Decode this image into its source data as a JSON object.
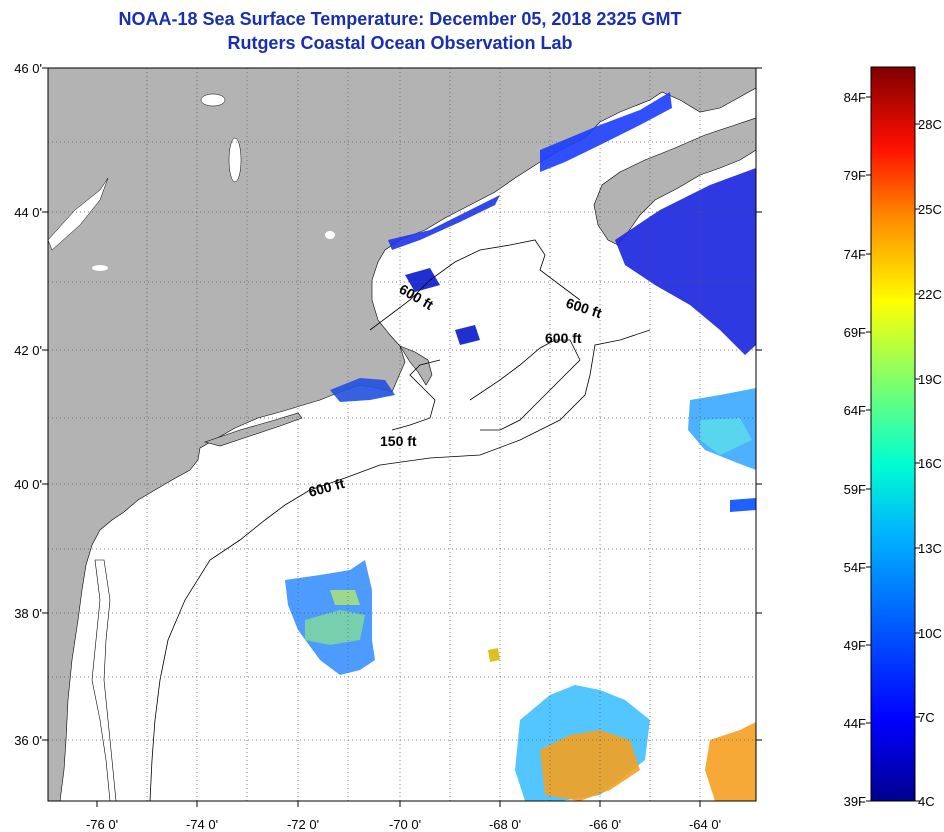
{
  "title": {
    "line1": "NOAA-18 Sea Surface Temperature:  December 05, 2018 2325 GMT",
    "line2": "Rutgers Coastal Ocean Observation Lab"
  },
  "map": {
    "lat_ticks": [
      "46 0'",
      "44 0'",
      "42 0'",
      "40 0'",
      "38 0'",
      "36 0'"
    ],
    "lon_ticks": [
      "-76 0'",
      "-74 0'",
      "-72 0'",
      "-70 0'",
      "-68 0'",
      "-66 0'",
      "-64 0'"
    ],
    "isobath_labels": [
      "600 ft",
      "600 ft",
      "600 ft",
      "150 ft",
      "600 ft"
    ],
    "land_color": "#b3b3b3",
    "ocean_color": "#ffffff"
  },
  "colorbar": {
    "fahrenheit": [
      "84F",
      "79F",
      "74F",
      "69F",
      "64F",
      "59F",
      "54F",
      "49F",
      "44F",
      "39F"
    ],
    "celsius": [
      "28C",
      "25C",
      "22C",
      "19C",
      "16C",
      "13C",
      "10C",
      "7C",
      "4C"
    ],
    "scale_colors": [
      "#00008f",
      "#0000ff",
      "#007fff",
      "#00ffff",
      "#7fff7f",
      "#ffff00",
      "#ff7f00",
      "#ff0000",
      "#7f0000"
    ]
  }
}
